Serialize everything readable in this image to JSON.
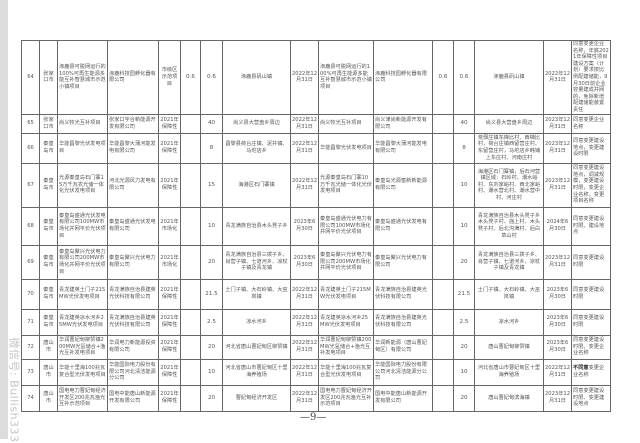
{
  "watermark": "微信号: Bullish333",
  "page_number": "—9—",
  "rows": [
    [
      "64",
      "张家口市",
      "涿鹿县可脱网运行的100%可再生能源多能互补智慧城市示范小镇项目",
      "涿鹿科技园孵化器有限公司",
      "市级区示范项目",
      "0.6",
      "0.6",
      "涿鹿县矾山镇",
      "2022年12月31日",
      "涿鹿县可脱网运行的100%可再生能源多能互补智慧城市示范小镇项目",
      "涿鹿科技园孵化器有限公司",
      "0.6",
      "0.6",
      "涿鹿县矾山镇",
      "2022年12月31日",
      "同意变更企业名称，年底2021年保障性项目建设方案（计划）要求按比例配建储能，9月30日前企业容量建成并网的，免除新增配建储能装置责任"
    ],
    [
      "65",
      "张家口市",
      "尚义牧光互补项目",
      "张家口宇合新能源开发有限公司",
      "2021年保障性",
      "",
      "40",
      "尚义县大营盘乡周边",
      "2022年12月31日",
      "尚义牧光互补项目",
      "尚义津尚新能源开发有限公司",
      "",
      "40",
      "尚义县大营盘乡周边",
      "2023年12月31日",
      "同意变更企业名称"
    ],
    [
      "66",
      "秦皇岛市",
      "华能昌黎光伏发电项目",
      "华能昌黎大蒲河能发电有限公司",
      "2021年保障性",
      "",
      "8",
      "昌黎县荷台庄镇、泥井镇、马坨店乡",
      "2022年12月31日",
      "华能昌黎光伏发电项目",
      "华能昌黎大蒲河能发电有限公司",
      "",
      "8",
      "荒佃庄镇东梯比村、西梯比村，荷台庄镇西留营庄村、东留营庄村，马坨店乡韩铺上东庄村、河南庄村",
      "2023年12月31日",
      "同意变更建设地点，变更建设时限"
    ],
    [
      "67",
      "秦皇岛市",
      "光源秦皇岛石门寨15万千瓦农光储一体化光伏发电项目",
      "河北光源风力发电有限公司",
      "2021年保障性",
      "",
      "15",
      "海港区石门寨镇",
      "2022年12月31日",
      "光源秦皇岛石门寨10万千瓦光储一体化光伏发电项目",
      "秦皇岛光源蜜新新能源有限公司",
      "",
      "10",
      "海港区石门寨镇，后石河营镇区域：石岭村、潮水峪村、东刘家峪村、西北家峪村、潮水营北村、潮水营中村、河庄村",
      "2023年12月31日",
      "同意变更建设地点，调减规模，变更建设时限，变更企业名称，变更项目名称"
    ],
    [
      "68",
      "秦皇岛市",
      "秦皇岛盛通光伏发电有限公司100MW市场化并网平价光伏项目",
      "秦皇岛盛通光伏发电有限公司",
      "2021年市场化",
      "",
      "10",
      "青龙满族自治县木头凳子乡",
      "2023年6月30日",
      "秦皇岛盛通光伏电力有限公司100MW市场化并网平价光伏项目",
      "秦皇岛盛通光伏发电有限公司",
      "",
      "10",
      "青龙满族自治县木头凳子乡木头凳子村、庙上村、木头凳子村、后北沟满村、后白草山村",
      "2024年6月30日",
      "同意变更建设时限、建设地点"
    ],
    [
      "69",
      "秦皇岛市",
      "秦皇岛聚兴光伏电力有限公司200MW市场化并网平价光伏项目",
      "秦皇岛聚兴光伏电力有限公司",
      "2021年市场化",
      "",
      "20",
      "青龙满族自治县三拨子乡、肖营子镇、七道河乡、凉杖子镇及青龙镇",
      "2023年6月30日",
      "秦皇岛聚兴光伏电力有限公司200MW市场化并网平价光伏项目",
      "秦皇岛聚兴光伏电力有限公司",
      "",
      "20",
      "青龙满族自治县三拨子乡、肖营子镇、七道河乡、凉杖子镇及青龙镇",
      "2023年12月31日",
      "同意变更建设时限"
    ],
    [
      "70",
      "秦皇岛市",
      "青龙建英土门子215MW光伏发电项目",
      "青龙满族自治县建英光伏科技有限公司",
      "2021年保障性",
      "",
      "21.5",
      "土门子镇、大石岭镇、大巫岚镇",
      "2022年12月31日",
      "青龙建英土门子215MW光伏发电项目",
      "青龙满族自治县建英光伏科技有限公司",
      "",
      "21.5",
      "土门子镇、大石岭镇、大巫岚镇",
      "2023年6月30日",
      "同意变更建设时限"
    ],
    [
      "71",
      "秦皇岛市",
      "青龙建英凉水河乡25MW光伏发电项目",
      "青龙满族自治县建英光伏科技有限公司",
      "2021年保障性",
      "",
      "2.5",
      "凉水河乡",
      "2022年12月31日",
      "青龙建英凉水河乡25MW光伏发电项目",
      "青龙满族自治县建英光伏科技有限公司",
      "",
      "2.5",
      "凉水河乡",
      "2023年6月30日",
      "同意变更建设时限"
    ],
    [
      "72",
      "唐山市",
      "华润曹妃甸柳赞镇200MW光氢储合+渔光互补发电项目",
      "华润电力新能源投资有限公司",
      "2021年保障性",
      "",
      "20",
      "河北省唐山曹妃甸区柳赞镇",
      "2022年12月31日",
      "华润曹妃甸柳赞镇200MW光氢储合+渔光互补发电项目",
      "华润新能源（唐山曹妃甸区）有限公司",
      "",
      "20",
      "唐山曹妃甸柳赞镇",
      "2023年6月30日",
      "同意变更建设时限、变更企业名称"
    ],
    [
      "73",
      "唐山市",
      "华能十里海100兆瓦复合型光伏发电项目",
      "华能国际电力股份有限公司河北清洁能源分公司",
      "2021年保障性",
      "",
      "10",
      "河北省唐山市曹妃甸区十里海养殖场",
      "2022年12月31日",
      "华能十里海100兆瓦复合型光伏发电项目",
      "华能国际电力股份有限公司河北清洁能源分公司",
      "",
      "10",
      "河北省唐山市曹妃甸区十里海养殖场",
      "2022年12月31日",
      "不同意变更企业名称"
    ],
    [
      "74",
      "唐山市",
      "国电电力曹妃甸经济开发区200兆瓦渔光互补示范项目",
      "国电中能唐山新能源开发有限公司",
      "2021年保障性",
      "",
      "20",
      "曹妃甸经济开发区",
      "2022年12月31日",
      "国电电力曹妃甸经济开发区200兆瓦渔光互补示范项目",
      "国电中能唐山新能源开发有限公司",
      "",
      "20",
      "唐山曹妃甸滨海镇",
      "2023年12月31日",
      "同意变更建设时限、变更建设地点"
    ]
  ]
}
